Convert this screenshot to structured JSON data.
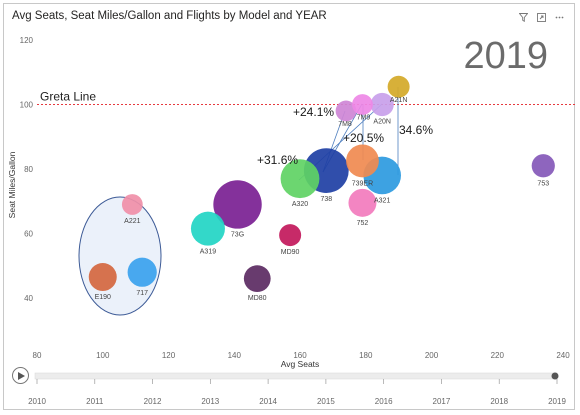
{
  "header": {
    "title": "Avg Seats, Seat Miles/Gallon and Flights by Model and YEAR",
    "icons": [
      "filter-icon",
      "focus-mode-icon",
      "more-options-icon"
    ]
  },
  "chart_data": {
    "type": "scatter",
    "title": "Avg Seats, Seat Miles/Gallon and Flights by Model and YEAR",
    "year_label": "2019",
    "xlabel": "Avg Seats",
    "ylabel": "Seat Miles/Gallon",
    "xlim": [
      80,
      240
    ],
    "ylim": [
      30,
      125
    ],
    "x_ticks": [
      "80",
      "100",
      "120",
      "140",
      "160",
      "180",
      "200",
      "220",
      "240"
    ],
    "y_ticks": [
      "40",
      "60",
      "80",
      "100",
      "120"
    ],
    "grid": false,
    "points": [
      {
        "label": "A221",
        "x": 109,
        "y": 69,
        "size": 0.45,
        "color": "#f08fa8"
      },
      {
        "label": "E190",
        "x": 100,
        "y": 46.5,
        "size": 0.75,
        "color": "#d4673f"
      },
      {
        "label": "717",
        "x": 112,
        "y": 48,
        "size": 0.8,
        "color": "#3aa2ee"
      },
      {
        "label": "A319",
        "x": 132,
        "y": 61.5,
        "size": 1.0,
        "color": "#22d5c4"
      },
      {
        "label": "73G",
        "x": 141,
        "y": 69,
        "size": 1.6,
        "color": "#7a1f93"
      },
      {
        "label": "MD80",
        "x": 147,
        "y": 46,
        "size": 0.7,
        "color": "#5b2a62"
      },
      {
        "label": "MD90",
        "x": 157,
        "y": 59.5,
        "size": 0.5,
        "color": "#c2185b"
      },
      {
        "label": "A320",
        "x": 160,
        "y": 77,
        "size": 1.2,
        "color": "#5fd364"
      },
      {
        "label": "738",
        "x": 168,
        "y": 79.5,
        "size": 1.45,
        "color": "#1e3fa4"
      },
      {
        "label": "7M8",
        "x": 174,
        "y": 98,
        "size": 0.45,
        "color": "#ce86d6"
      },
      {
        "label": "7M9",
        "x": 179,
        "y": 100,
        "size": 0.45,
        "color": "#ee88e6"
      },
      {
        "label": "739ER",
        "x": 179,
        "y": 82.5,
        "size": 0.95,
        "color": "#f08a50"
      },
      {
        "label": "752",
        "x": 179,
        "y": 69.5,
        "size": 0.75,
        "color": "#f27bbd"
      },
      {
        "label": "A20N",
        "x": 185,
        "y": 100,
        "size": 0.55,
        "color": "#c8a0ea"
      },
      {
        "label": "A21N",
        "x": 190,
        "y": 105.5,
        "size": 0.5,
        "color": "#d4a928"
      },
      {
        "label": "A321",
        "x": 185,
        "y": 78,
        "size": 1.15,
        "color": "#2d9ae0"
      },
      {
        "label": "753",
        "x": 234,
        "y": 81,
        "size": 0.55,
        "color": "#8458b8"
      }
    ],
    "reference_line": {
      "label": "Greta Line",
      "y": 100,
      "color": "#e6393f"
    },
    "annotations": [
      {
        "text": "+24.1%"
      },
      {
        "text": "+20.5%"
      },
      {
        "text": "+31.6%"
      },
      {
        "text": "34.6%"
      }
    ]
  },
  "play_axis": {
    "play_label": "play-icon",
    "years": [
      "2010",
      "2011",
      "2012",
      "2013",
      "2014",
      "2015",
      "2016",
      "2017",
      "2018",
      "2019"
    ],
    "current": "2019"
  }
}
